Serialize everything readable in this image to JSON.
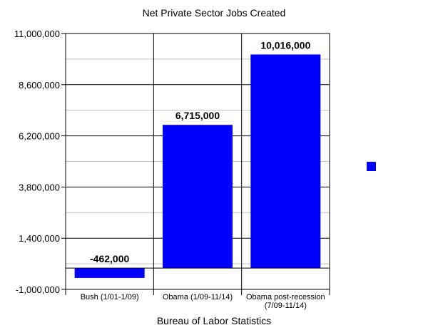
{
  "chart_data": {
    "type": "bar",
    "title": "Net Private Sector Jobs Created",
    "xlabel": "Bureau of Labor Statistics",
    "ylabel": "",
    "categories": [
      [
        "Bush (1/01-1/09)"
      ],
      [
        "Obama (1/09-11/14)"
      ],
      [
        "Obama post-recession",
        "(7/09-11/14)"
      ]
    ],
    "values": [
      -462000,
      6715000,
      10016000
    ],
    "data_labels": [
      "-462,000",
      "6,715,000",
      "10,016,000"
    ],
    "ylim": [
      -1000000,
      11000000
    ],
    "yticks": [
      -1000000,
      1400000,
      3800000,
      6200000,
      8600000,
      11000000
    ],
    "ytick_labels": [
      "-1,000,000",
      "1,400,000",
      "3,800,000",
      "6,200,000",
      "8,600,000",
      "11,000,000"
    ],
    "grid": true,
    "legend": "right",
    "bar_color": "#0000ff"
  }
}
